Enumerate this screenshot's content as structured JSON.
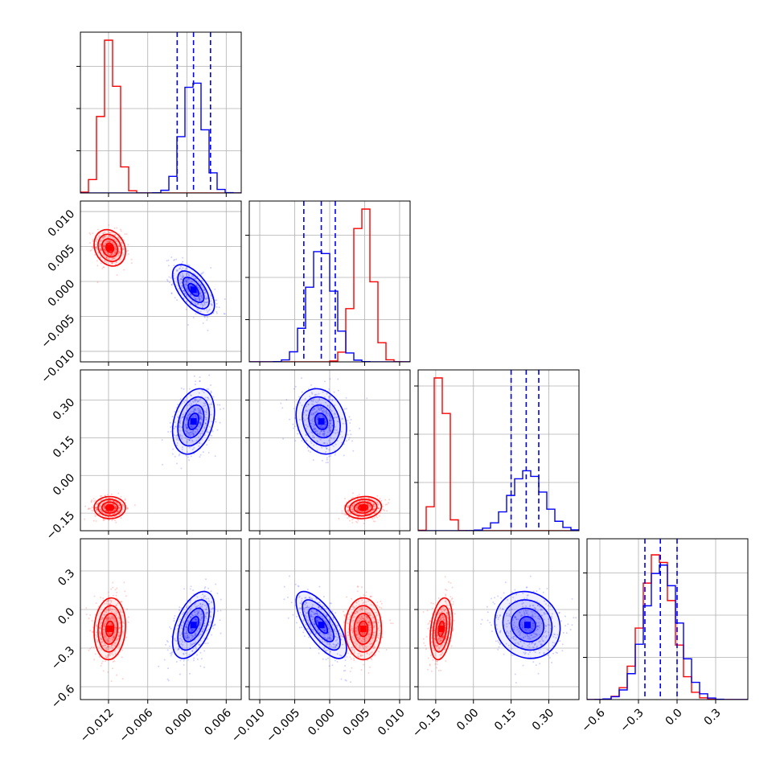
{
  "chart_data": {
    "type": "corner",
    "grid": true,
    "colors": {
      "series_a": "#ff0000",
      "series_b": "#0000ff"
    },
    "params": [
      {
        "lim": [
          -0.0163,
          0.0083
        ],
        "ticks": [
          -0.012,
          -0.006,
          0.0,
          0.006
        ],
        "tick_labels": [
          "−0.012",
          "−0.006",
          "0.000",
          "0.006"
        ]
      },
      {
        "lim": [
          -0.0115,
          0.0115
        ],
        "ticks": [
          -0.01,
          -0.005,
          0.0,
          0.005,
          0.01
        ],
        "tick_labels": [
          "−0.010",
          "−0.005",
          "0.000",
          "0.005",
          "0.010"
        ]
      },
      {
        "lim": [
          -0.22,
          0.42
        ],
        "ticks": [
          -0.15,
          0.0,
          0.15,
          0.3
        ],
        "tick_labels": [
          "−0.15",
          "0.00",
          "0.15",
          "0.30"
        ]
      },
      {
        "lim": [
          -0.7,
          0.55
        ],
        "ticks": [
          -0.6,
          -0.3,
          0.0,
          0.3
        ],
        "tick_labels": [
          "−0.6",
          "−0.3",
          "0.0",
          "0.3"
        ]
      }
    ],
    "series": [
      {
        "color": "red",
        "mean": [
          -0.0118,
          0.0048,
          -0.128,
          -0.15
        ],
        "sd": [
          0.0012,
          0.0013,
          0.022,
          0.12
        ]
      },
      {
        "color": "blue",
        "mean": [
          0.001,
          -0.0012,
          0.215,
          -0.12
        ],
        "sd": [
          0.0016,
          0.0018,
          0.065,
          0.13
        ]
      }
    ],
    "quantile_lines": [
      {
        "param": 0,
        "values": [
          -0.0015,
          0.001,
          0.0036
        ]
      },
      {
        "param": 1,
        "values": [
          -0.0037,
          -0.0012,
          0.0008
        ]
      },
      {
        "param": 2,
        "values": [
          0.15,
          0.21,
          0.26
        ]
      },
      {
        "param": 3,
        "values": [
          -0.25,
          -0.13,
          0.0
        ]
      }
    ]
  }
}
